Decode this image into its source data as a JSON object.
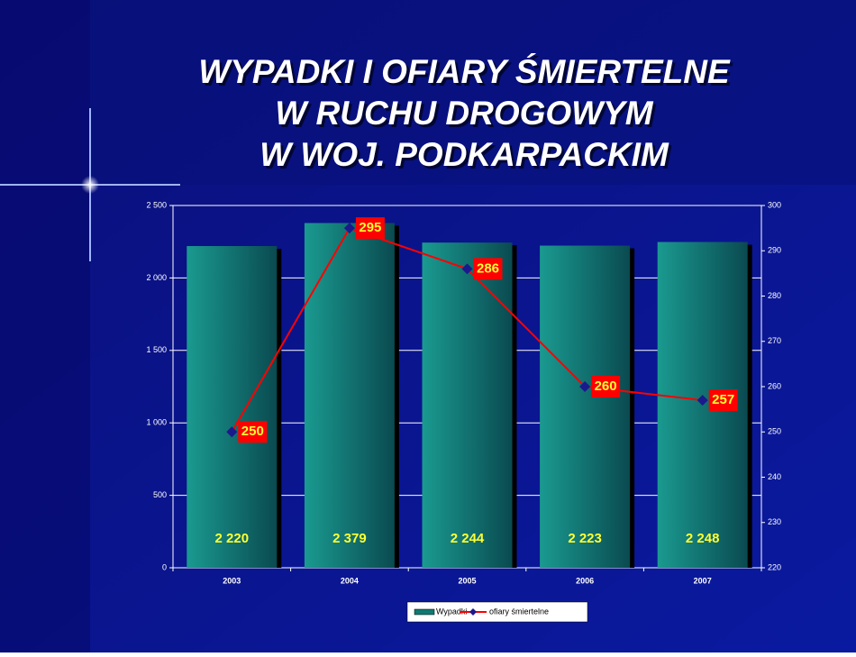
{
  "chart_data": {
    "type": "bar-line",
    "title": [
      "WYPADKI I OFIARY ŚMIERTELNE",
      "W RUCHU DROGOWYM",
      "W WOJ. PODKARPACKIM"
    ],
    "categories": [
      "2003",
      "2004",
      "2005",
      "2006",
      "2007"
    ],
    "series": [
      {
        "name": "Wypadki",
        "color": "#0f7a72",
        "values": [
          2220,
          2379,
          2244,
          2223,
          2248
        ],
        "value_labels": [
          "2 220",
          "2 379",
          "2 244",
          "2 223",
          "2 248"
        ]
      },
      {
        "name": "ofiary śmiertelne",
        "color": "#ff0000",
        "marker_color": "#1a1a8c",
        "axis": "y2",
        "values": [
          250,
          295,
          286,
          260,
          257
        ]
      }
    ],
    "ylim": [
      0,
      2500
    ],
    "yticks": [
      0,
      500,
      {
        "value": 1000,
        "label": "1 000"
      },
      {
        "value": 1500,
        "label": "1 500"
      },
      {
        "value": 2000,
        "label": "2 000"
      },
      {
        "value": 2500,
        "label": "2 500"
      }
    ],
    "y2lim": [
      220,
      300
    ],
    "y2ticks": [
      220,
      230,
      240,
      250,
      260,
      270,
      280,
      290,
      300
    ],
    "grid": true
  }
}
